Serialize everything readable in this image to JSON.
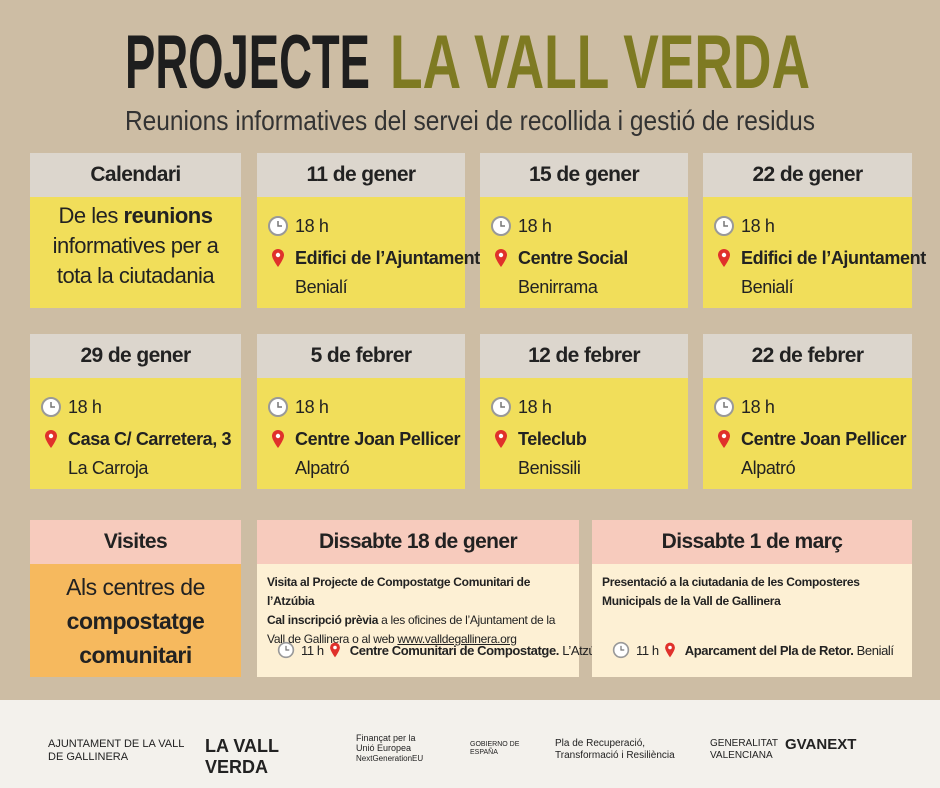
{
  "header": {
    "title_dark": "PROJECTE",
    "title_green": "LA VALL VERDA",
    "subtitle": "Reunions informatives del servei de recollida i gestió de residus"
  },
  "calendar": {
    "heading": "Calendari",
    "body": [
      "De les ",
      "reunions",
      " informatives per a tota la ciutadania"
    ]
  },
  "meetings": [
    {
      "date": "11 de gener",
      "time": "18 h",
      "place": "Edifici de l’Ajuntament",
      "town": "Benialí"
    },
    {
      "date": "15 de gener",
      "time": "18 h",
      "place": "Centre Social",
      "town": "Benirrama"
    },
    {
      "date": "22 de gener",
      "time": "18 h",
      "place": "Edifici de l’Ajuntament",
      "town": "Benialí"
    },
    {
      "date": "29 de gener",
      "time": "18 h",
      "place": "Casa C/ Carretera, 3",
      "town": "La Carroja"
    },
    {
      "date": "5 de febrer",
      "time": "18 h",
      "place": "Centre Joan Pellicer",
      "town": "Alpatró"
    },
    {
      "date": "12 de febrer",
      "time": "18 h",
      "place": "Teleclub",
      "town": "Benissili"
    },
    {
      "date": "22 de febrer",
      "time": "18 h",
      "place": "Centre Joan Pellicer",
      "town": "Alpatró"
    }
  ],
  "visits": {
    "heading": "Visites",
    "body": [
      "Als centres de",
      "compostatge comunitari"
    ],
    "events": [
      {
        "date": "Dissabte 18 de gener",
        "title": "Visita al Projecte de Compostatge Comunitari de l’Atzúbia",
        "note_bold": "Cal inscripció prèvia",
        "note": " a les oficines de l’Ajuntament de la Vall de Gallinera o al web ",
        "link": "www.valldegallinera.org",
        "time": "11 h",
        "place": "Centre Comunitari de Compostatge.",
        "town": " L’Atzúbia"
      },
      {
        "date": "Dissabte 1 de març",
        "title": "Presentació a la ciutadania de les Composteres Municipals de la Vall de Gallinera",
        "time": "11 h",
        "place": "Aparcament del Pla de Retor.",
        "town": " Benialí"
      }
    ]
  },
  "footer": {
    "logos": [
      "AJUNTAMENT DE LA VALL DE GALLINERA",
      "LA VALL VERDA",
      "Finançat per la Unió Europea",
      "NextGenerationEU",
      "GOBIERNO DE ESPAÑA",
      "Pla de Recuperació, Transformació i Resiliència",
      "GENERALITAT VALENCIANA",
      "GVANEXT"
    ]
  }
}
